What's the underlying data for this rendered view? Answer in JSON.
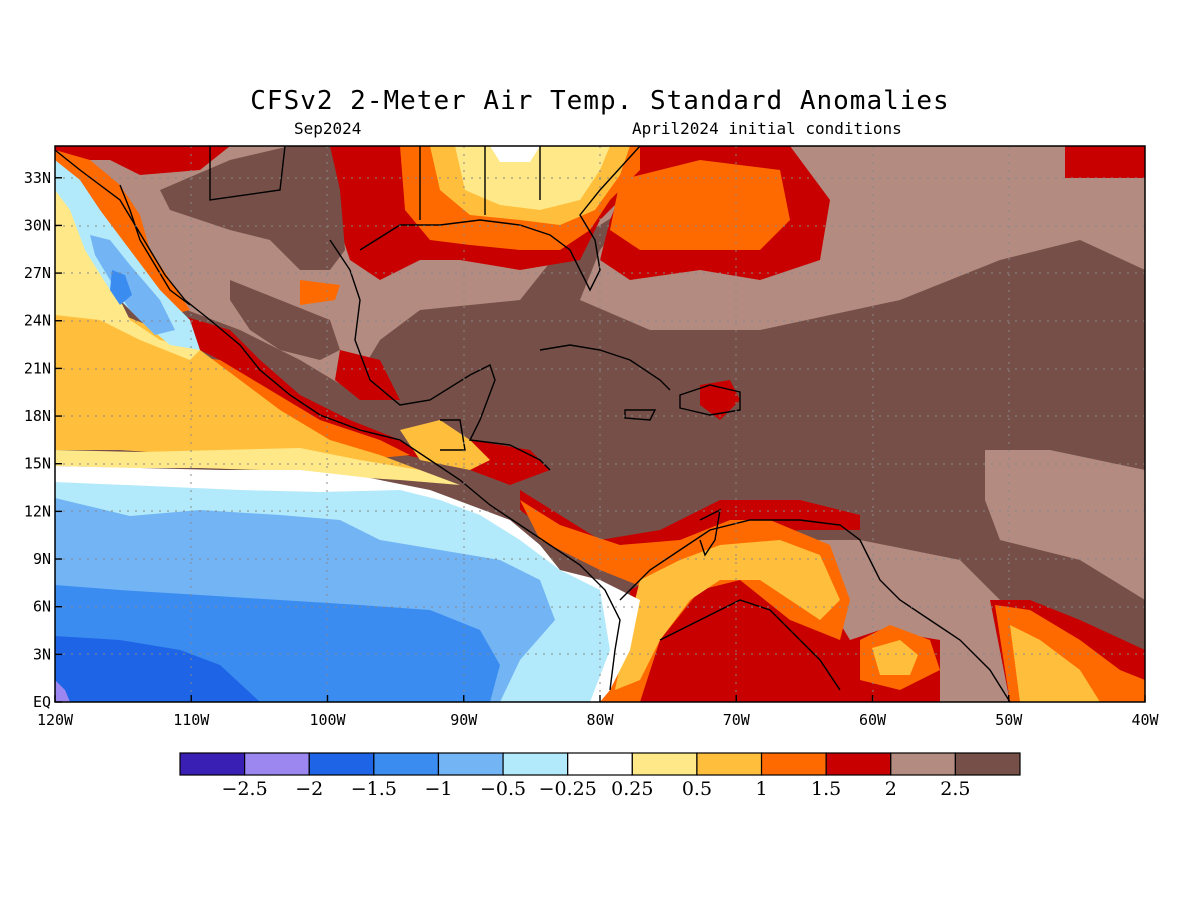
{
  "map": {
    "title": "CFSv2 2-Meter Air Temp. Standard Anomalies",
    "valid_month": "Sep2024",
    "initial_conditions": "April2024 initial conditions",
    "lon_range": [
      -120,
      -40
    ],
    "lat_range": [
      0,
      35
    ],
    "lon_ticks": [
      "120W",
      "110W",
      "100W",
      "90W",
      "80W",
      "70W",
      "60W",
      "50W",
      "40W"
    ],
    "lat_ticks": [
      "EQ",
      "3N",
      "6N",
      "9N",
      "12N",
      "15N",
      "18N",
      "21N",
      "24N",
      "27N",
      "30N",
      "33N"
    ],
    "gridlines": "dotted"
  },
  "colorbar": {
    "colors": [
      "#3a1fb4",
      "#9c86ef",
      "#1e64e6",
      "#3a8cf0",
      "#73b4f5",
      "#b2eafb",
      "#ffffff",
      "#ffe887",
      "#ffbf3c",
      "#ff6a00",
      "#c80000",
      "#b38b80",
      "#765048"
    ],
    "labels": [
      "-2.5",
      "-2",
      "-1.5",
      "-1",
      "-0.5",
      "-0.25",
      "0.25",
      "0.5",
      "1",
      "1.5",
      "2",
      "2.5"
    ]
  }
}
